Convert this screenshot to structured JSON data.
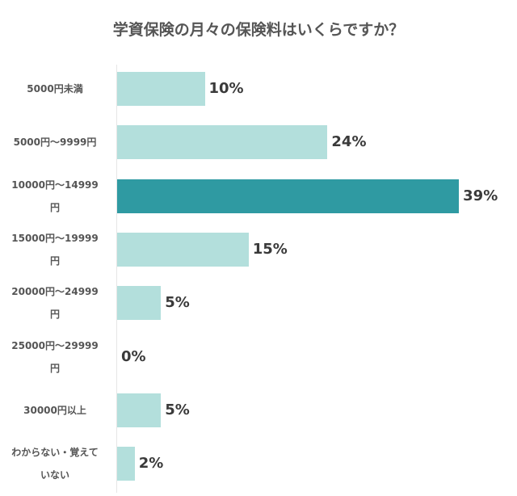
{
  "chart_data": {
    "type": "bar",
    "orientation": "horizontal",
    "title": "学資保険の月々の保険料はいくらですか？",
    "categories": [
      "5000円未満",
      "5000円～9999円",
      "10000円～14999円",
      "15000円～19999円",
      "20000円～24999円",
      "25000円～29999円",
      "30000円以上",
      "わからない・覚えていない"
    ],
    "category_lines": [
      [
        "5000円未満"
      ],
      [
        "5000円～9999円"
      ],
      [
        "10000円～14999",
        "円"
      ],
      [
        "15000円～19999",
        "円"
      ],
      [
        "20000円～24999",
        "円"
      ],
      [
        "25000円～29999",
        "円"
      ],
      [
        "30000円以上"
      ],
      [
        "わからない・覚えて",
        "いない"
      ]
    ],
    "values": [
      10,
      24,
      39,
      15,
      5,
      0,
      5,
      2
    ],
    "value_labels": [
      "10%",
      "24%",
      "39%",
      "15%",
      "5%",
      "0%",
      "5%",
      "2%"
    ],
    "highlight_index": 2,
    "xlabel": "",
    "ylabel": "",
    "xlim": [
      0,
      40
    ],
    "grid": false,
    "colors": {
      "bar": "#b3dfdc",
      "highlight": "#2f9aa2"
    }
  }
}
